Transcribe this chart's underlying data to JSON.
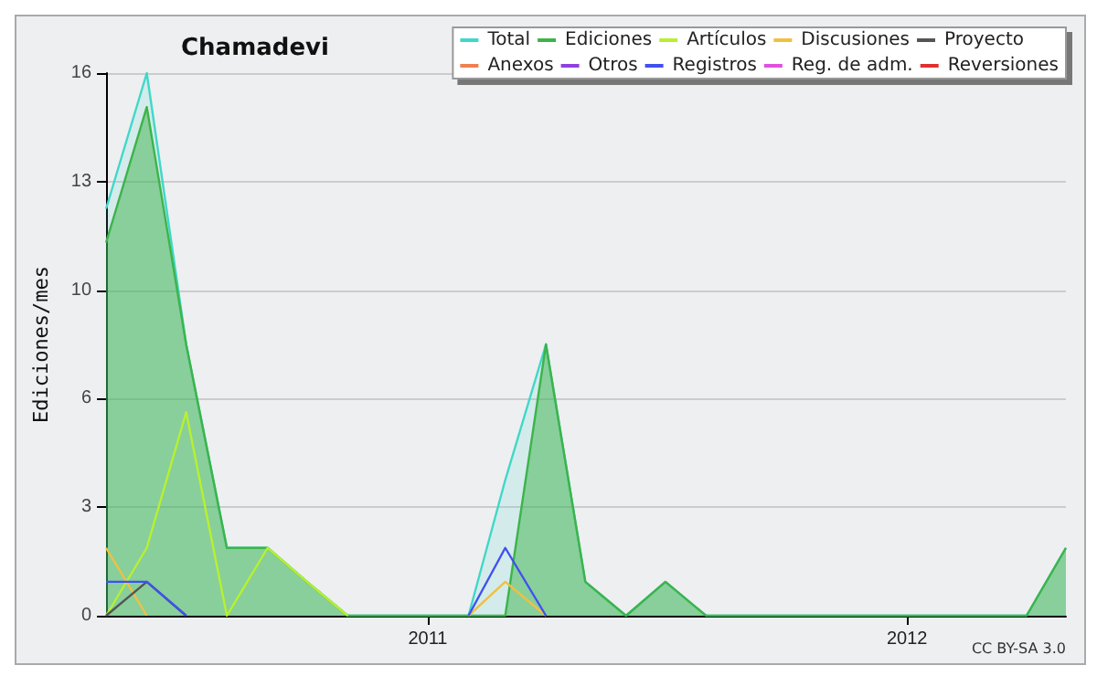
{
  "chart_data": {
    "type": "line",
    "title": "Chamadevi",
    "ylabel": "Ediciones/mes",
    "x": [
      "2010-05",
      "2010-06",
      "2010-07",
      "2010-08",
      "2010-09",
      "2010-10",
      "2010-11",
      "2010-12",
      "2011-01",
      "2011-02",
      "2011-03",
      "2011-04",
      "2011-05",
      "2011-06",
      "2011-07",
      "2011-08",
      "2011-09",
      "2011-10",
      "2011-11",
      "2011-12",
      "2012-01",
      "2012-02",
      "2012-03",
      "2012-04",
      "2012-05"
    ],
    "series": [
      {
        "name": "Total",
        "type": "area",
        "color": "#40d8c8",
        "values": [
          12,
          16,
          8,
          2,
          2,
          1,
          0,
          0,
          0,
          0,
          4,
          8,
          1,
          0,
          1,
          0,
          0,
          0,
          0,
          0,
          0,
          0,
          0,
          0,
          2
        ]
      },
      {
        "name": "Ediciones",
        "type": "area",
        "color": "#3cb44b",
        "values": [
          11,
          15,
          8,
          2,
          2,
          1,
          0,
          0,
          0,
          0,
          0,
          8,
          1,
          0,
          1,
          0,
          0,
          0,
          0,
          0,
          0,
          0,
          0,
          0,
          2
        ]
      },
      {
        "name": "Artículos",
        "color": "#b8f030",
        "values": [
          0,
          2,
          6,
          0,
          2,
          1,
          0,
          null,
          null,
          null,
          null,
          null,
          null,
          null,
          null,
          null,
          null,
          null,
          null,
          null,
          null,
          null,
          null,
          null,
          null
        ]
      },
      {
        "name": "Discusiones",
        "color": "#f0c040",
        "values": [
          2,
          0,
          null,
          null,
          null,
          null,
          null,
          null,
          null,
          0,
          1,
          0,
          null,
          null,
          null,
          null,
          null,
          null,
          null,
          null,
          null,
          null,
          null,
          null,
          null
        ]
      },
      {
        "name": "Proyecto",
        "color": "#555555",
        "values": [
          0,
          1,
          0,
          null,
          null,
          null,
          null,
          null,
          null,
          null,
          null,
          null,
          null,
          null,
          null,
          null,
          null,
          null,
          null,
          null,
          null,
          null,
          null,
          null,
          null
        ]
      },
      {
        "name": "Anexos",
        "color": "#f08050",
        "values": [
          null,
          null,
          null,
          null,
          null,
          null,
          null,
          null,
          null,
          null,
          null,
          null,
          null,
          null,
          null,
          null,
          null,
          null,
          null,
          null,
          null,
          null,
          null,
          null,
          null
        ]
      },
      {
        "name": "Otros",
        "color": "#9040e0",
        "values": [
          null,
          null,
          null,
          null,
          null,
          null,
          null,
          null,
          null,
          null,
          null,
          null,
          null,
          null,
          null,
          null,
          null,
          null,
          null,
          null,
          null,
          null,
          null,
          null,
          null
        ]
      },
      {
        "name": "Registros",
        "color": "#4050f0",
        "values": [
          1,
          1,
          0,
          null,
          null,
          null,
          null,
          null,
          null,
          0,
          2,
          0,
          null,
          null,
          null,
          null,
          null,
          null,
          null,
          null,
          null,
          null,
          null,
          null,
          null
        ]
      },
      {
        "name": "Reg. de adm.",
        "color": "#e050e0",
        "values": [
          null,
          null,
          null,
          null,
          null,
          null,
          null,
          null,
          null,
          null,
          null,
          null,
          null,
          null,
          null,
          null,
          null,
          null,
          null,
          null,
          null,
          null,
          null,
          null,
          null
        ]
      },
      {
        "name": "Reversiones",
        "color": "#e03030",
        "values": [
          null,
          null,
          null,
          null,
          null,
          null,
          null,
          null,
          null,
          null,
          null,
          null,
          null,
          null,
          null,
          null,
          null,
          null,
          null,
          null,
          null,
          null,
          null,
          null,
          null
        ]
      }
    ],
    "xlim": [
      "2010-05",
      "2012-05"
    ],
    "xticks": [
      {
        "value": "2011-01",
        "label": "2011"
      },
      {
        "value": "2012-01",
        "label": "2012"
      }
    ],
    "ylim": [
      0,
      16
    ],
    "yticks": [
      0,
      {
        "value": 3.2,
        "label": "3"
      },
      {
        "value": 6.4,
        "label": "6"
      },
      {
        "value": 9.6,
        "label": "10"
      },
      {
        "value": 12.8,
        "label": "13"
      },
      16
    ],
    "grid": "y",
    "legend": "top right",
    "marker": "none",
    "line_style": "solid",
    "annotations": [
      "CC BY-SA 3.0"
    ]
  }
}
